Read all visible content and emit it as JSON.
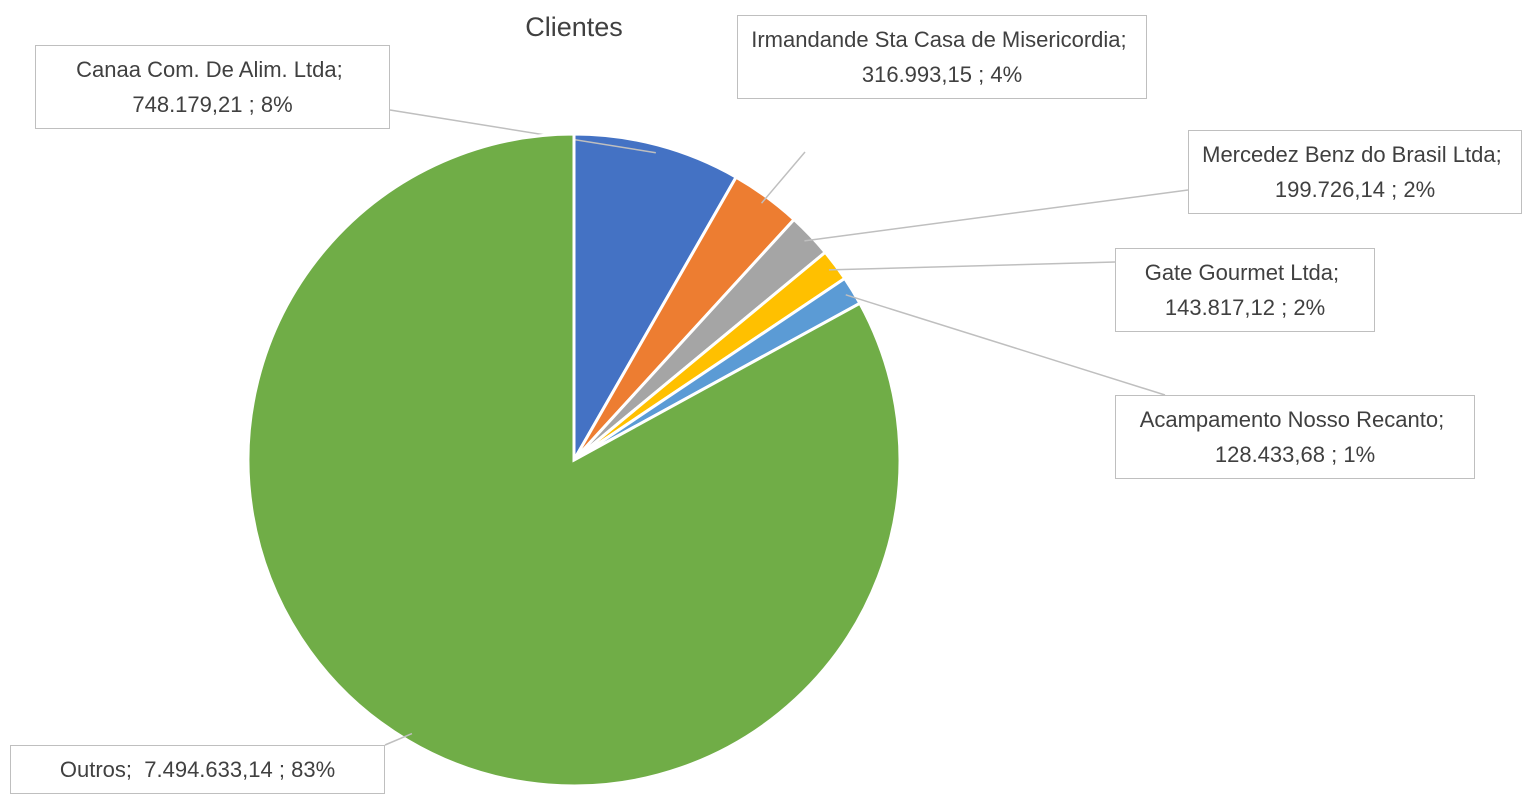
{
  "chart_data": {
    "type": "pie",
    "title": "Clientes",
    "categories": [
      "Canaa Com. De Alim. Ltda",
      "Irmandande Sta Casa de Misericordia",
      "Mercedez Benz do Brasil Ltda",
      "Gate Gourmet Ltda",
      "Acampamento Nosso Recanto",
      "Outros"
    ],
    "values": [
      748179.21,
      316993.15,
      199726.14,
      143817.12,
      128433.68,
      7494633.14
    ],
    "value_labels": [
      "748.179,21",
      "316.993,15",
      "199.726,14",
      "143.817,12",
      "128.433,68",
      "7.494.633,14"
    ],
    "percent_labels": [
      "8%",
      "4%",
      "2%",
      "2%",
      "1%",
      "83%"
    ],
    "label_separator": ";",
    "colors": [
      "#4472c4",
      "#ed7d31",
      "#a5a5a5",
      "#ffc000",
      "#5b9bd5",
      "#70ad47"
    ]
  }
}
